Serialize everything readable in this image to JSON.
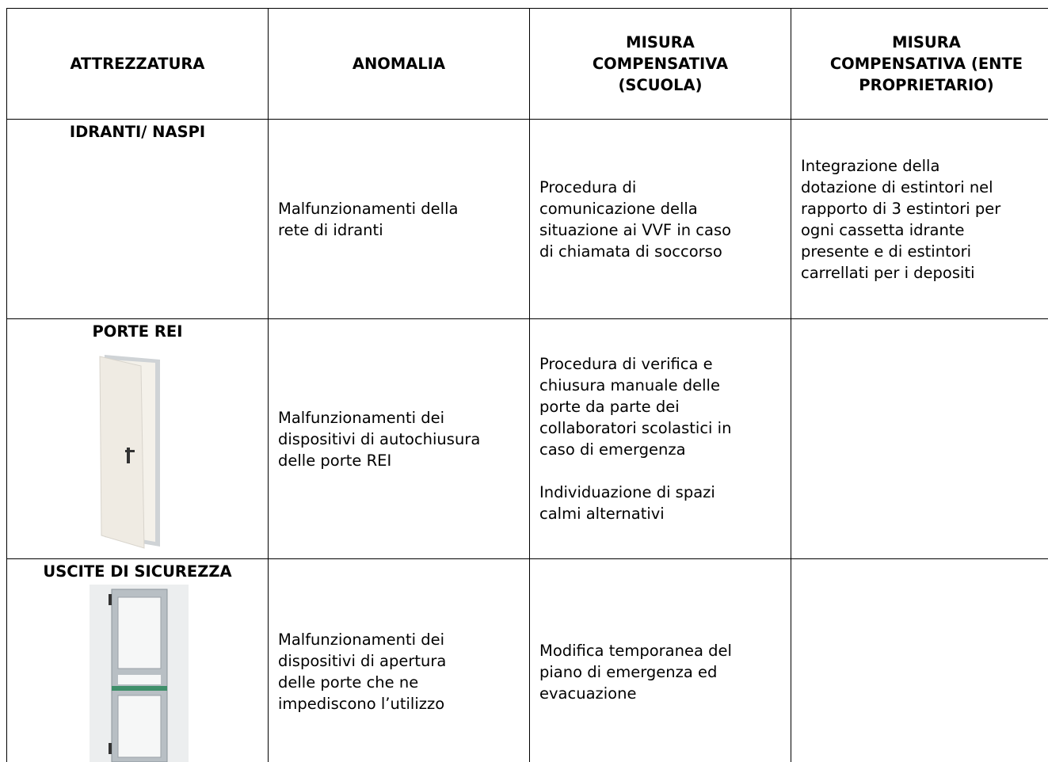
{
  "table": {
    "header": [
      "ATTREZZATURA",
      [
        "ANOMALIA"
      ],
      [
        "MISURA",
        "COMPENSATIVA",
        "(SCUOLA)"
      ],
      [
        "MISURA",
        "COMPENSATIVA (ENTE",
        "PROPRIETARIO)"
      ]
    ],
    "rows": [
      {
        "equipment": "IDRANTI/ NASPI",
        "anomaly": [
          [
            "Malfunzionamenti della",
            "rete di idranti"
          ]
        ],
        "school": [
          [
            "Procedura di",
            "comunicazione della",
            "situazione ai VVF in caso",
            "di chiamata di soccorso"
          ]
        ],
        "owner": [
          [
            "Integrazione della",
            "dotazione di estintori nel",
            "rapporto di 3 estintori per",
            "ogni cassetta idrante",
            "presente e di estintori",
            "carrellati per i depositi"
          ]
        ]
      },
      {
        "equipment": "PORTE REI",
        "anomaly": [
          [
            "Malfunzionamenti dei",
            "dispositivi di autochiusura",
            "delle porte REI"
          ]
        ],
        "school": [
          [
            "Procedura di verifica e",
            "chiusura manuale delle",
            "porte da parte dei",
            "collaboratori scolastici in",
            "caso di emergenza"
          ],
          [
            "Individuazione di spazi",
            "calmi alternativi"
          ]
        ],
        "owner": []
      },
      {
        "equipment": "USCITE DI SICUREZZA",
        "anomaly": [
          [
            "Malfunzionamenti dei",
            "dispositivi di apertura",
            "delle porte che ne",
            "impediscono l’utilizzo"
          ]
        ],
        "school": [
          [
            "Modifica temporanea del",
            "piano di emergenza ed",
            "evacuazione"
          ]
        ],
        "owner": []
      }
    ]
  }
}
